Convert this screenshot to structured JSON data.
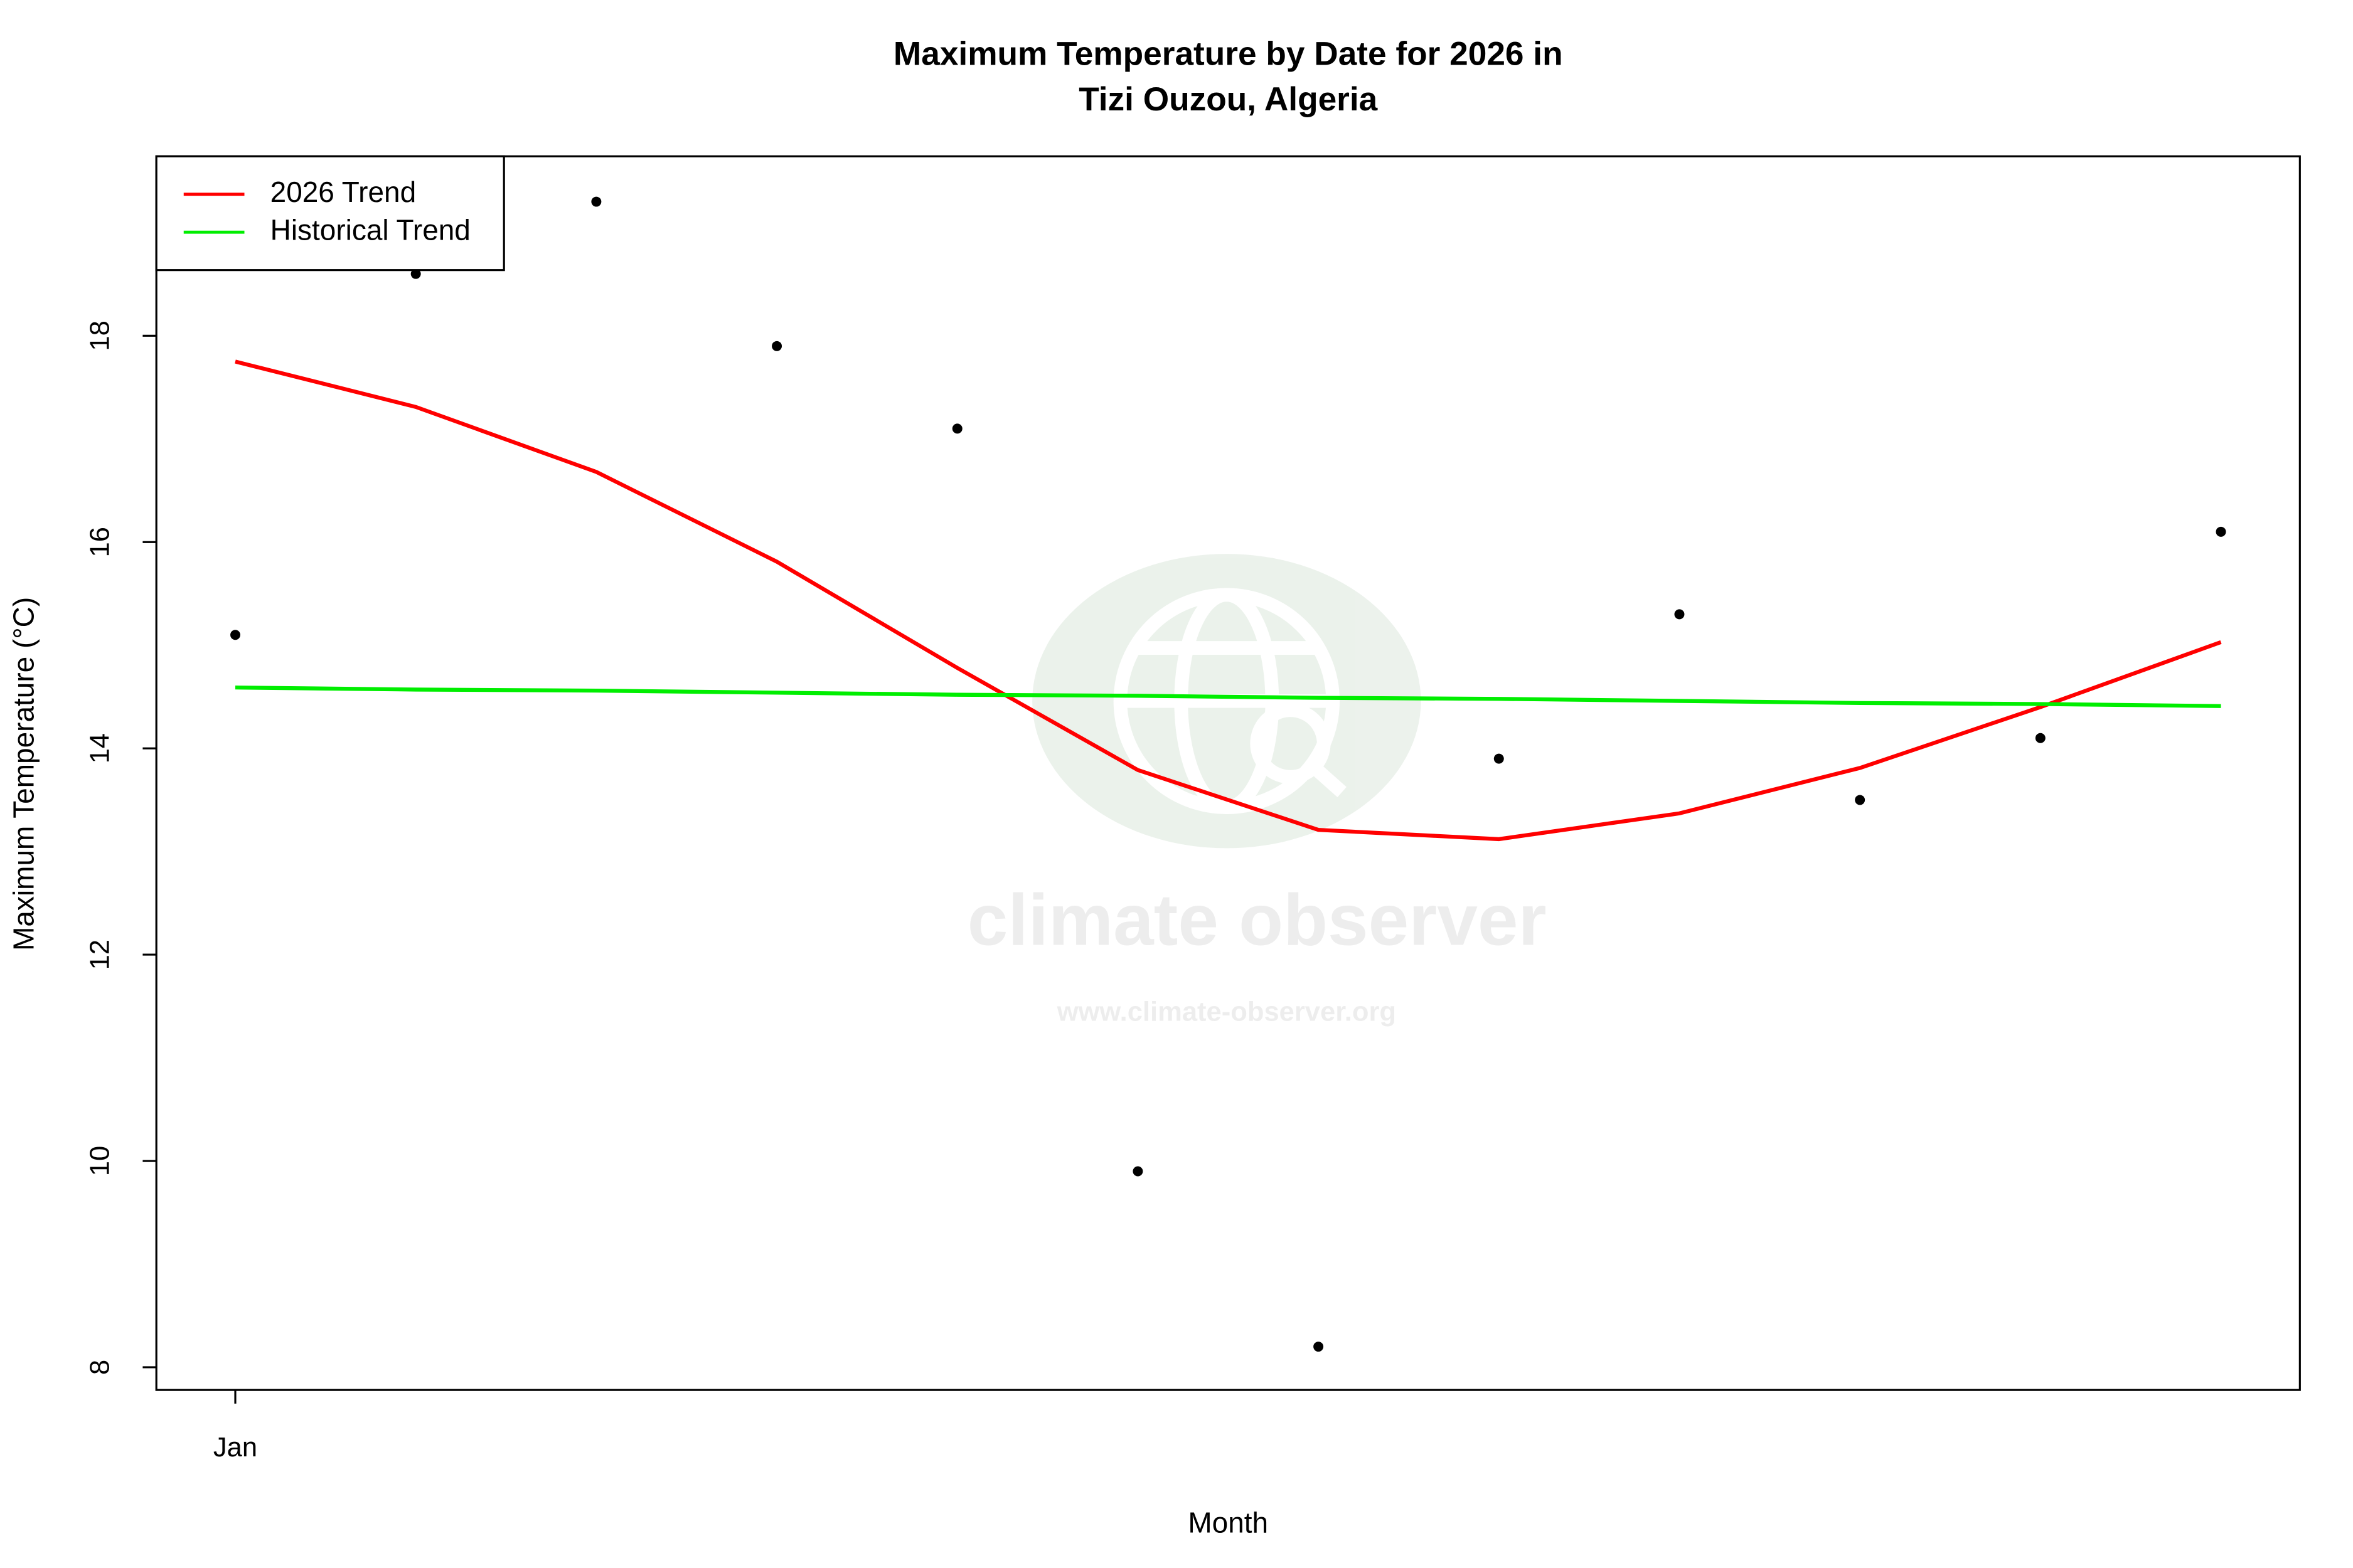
{
  "chart_data": {
    "type": "line",
    "title_lines": [
      "Maximum Temperature by Date for 2026 in",
      "Tizi Ouzou, Algeria"
    ],
    "x_label": "Month",
    "y_label": "Maximum Temperature (°C)",
    "categories": [
      "Jan",
      null,
      null,
      null,
      null,
      null,
      null,
      null,
      null,
      null,
      null,
      null
    ],
    "points": {
      "color": "#000000",
      "values": [
        15.1,
        18.6,
        19.3,
        17.9,
        17.1,
        9.9,
        8.2,
        13.9,
        15.3,
        13.5,
        14.1,
        16.1
      ]
    },
    "series": [
      {
        "name": "2026 Trend",
        "color": "#ff0000",
        "values": [
          17.75,
          17.31,
          16.68,
          15.81,
          14.78,
          13.79,
          13.21,
          13.12,
          13.37,
          13.81,
          14.4,
          15.03
        ]
      },
      {
        "name": "Historical Trend",
        "color": "#00ee00",
        "values": [
          14.59,
          14.57,
          14.56,
          14.54,
          14.52,
          14.51,
          14.49,
          14.48,
          14.46,
          14.44,
          14.43,
          14.41
        ]
      }
    ],
    "ylim": [
      7.78,
      19.74
    ],
    "yticks": [
      8,
      10,
      12,
      14,
      16,
      18
    ],
    "legend": "top-left",
    "watermark": {
      "name": "climate observer",
      "url": "www.climate-observer.org"
    }
  }
}
